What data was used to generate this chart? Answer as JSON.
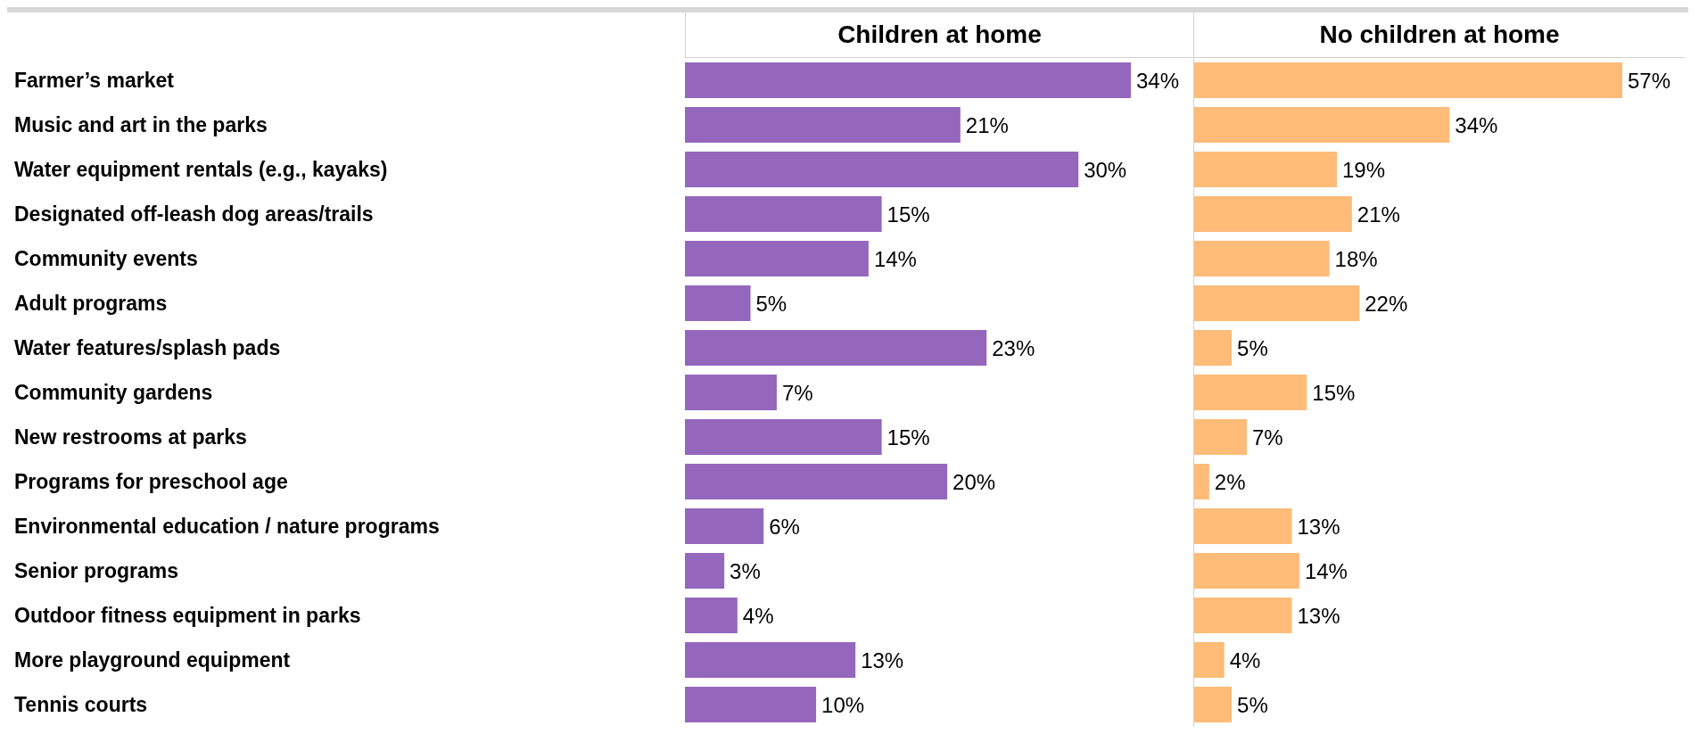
{
  "chart_data": [
    {
      "type": "bar",
      "orientation": "horizontal",
      "title": "Children at home",
      "tick_labels": "y",
      "color": "#9467bd",
      "categories": [
        "Farmer’s market",
        "Music and art in the parks",
        "Water equipment rentals (e.g., kayaks)",
        "Designated off-leash dog areas/trails",
        "Community events",
        "Adult programs",
        "Water features/splash pads",
        "Community gardens",
        "New restrooms at parks",
        "Programs for preschool age",
        "Environmental education / nature programs",
        "Senior programs",
        "Outdoor fitness equipment in parks",
        "More playground equipment",
        "Tennis courts"
      ],
      "values": [
        34,
        21,
        30,
        15,
        14,
        5,
        23,
        7,
        15,
        20,
        6,
        3,
        4,
        13,
        10
      ],
      "value_labels": [
        "34%",
        "21%",
        "30%",
        "15%",
        "14%",
        "5%",
        "23%",
        "7%",
        "15%",
        "20%",
        "6%",
        "3%",
        "4%",
        "13%",
        "10%"
      ]
    },
    {
      "type": "bar",
      "orientation": "horizontal",
      "title": "No children at home",
      "tick_labels": false,
      "color": "#ffbb78",
      "categories": [
        null,
        null,
        null,
        null,
        null,
        null,
        null,
        null,
        null,
        null,
        null,
        null,
        null,
        null,
        null
      ],
      "values": [
        57,
        34,
        19,
        21,
        18,
        22,
        5,
        15,
        7,
        2,
        13,
        14,
        13,
        4,
        5
      ],
      "value_labels": [
        "57%",
        "34%",
        "19%",
        "21%",
        "18%",
        "22%",
        "5%",
        "15%",
        "7%",
        "2%",
        "13%",
        "14%",
        "13%",
        "4%",
        "5%"
      ]
    }
  ]
}
